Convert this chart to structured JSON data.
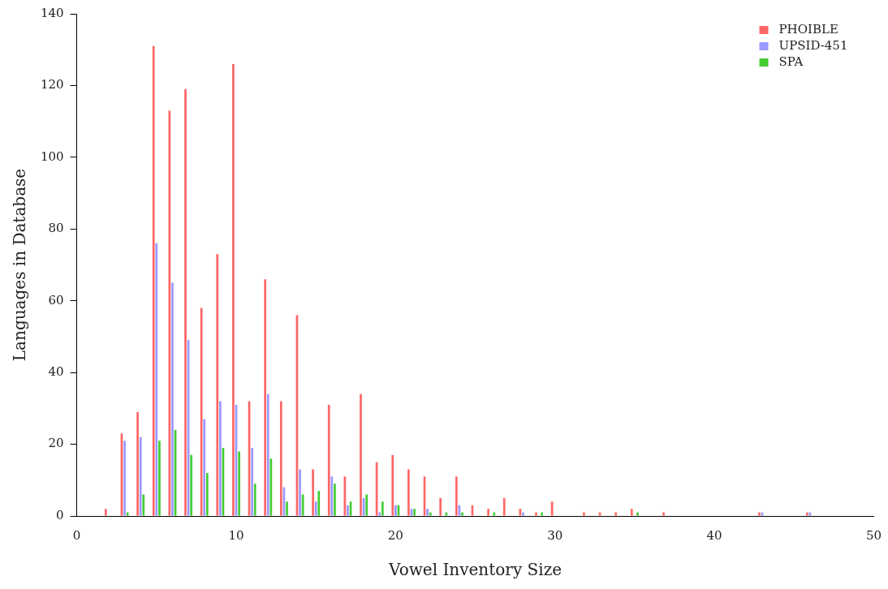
{
  "chart_data": {
    "type": "bar",
    "xlabel": "Vowel Inventory Size",
    "ylabel": "Languages in Database",
    "x": [
      2,
      3,
      4,
      5,
      6,
      7,
      8,
      9,
      10,
      11,
      12,
      13,
      14,
      15,
      16,
      17,
      18,
      19,
      20,
      21,
      22,
      23,
      24,
      25,
      26,
      27,
      28,
      29,
      30,
      31,
      32,
      33,
      34,
      35,
      36,
      37,
      43,
      46
    ],
    "series": [
      {
        "name": "PHOIBLE",
        "color": "#ff6666",
        "values": [
          2,
          23,
          29,
          131,
          113,
          119,
          58,
          73,
          126,
          32,
          66,
          32,
          56,
          13,
          31,
          11,
          34,
          15,
          17,
          13,
          11,
          5,
          11,
          3,
          2,
          5,
          2,
          1,
          4,
          null,
          1,
          1,
          1,
          2,
          null,
          1,
          1,
          1
        ]
      },
      {
        "name": "UPSID-451",
        "color": "#9999ff",
        "values": [
          null,
          21,
          22,
          76,
          65,
          49,
          27,
          32,
          31,
          19,
          34,
          8,
          13,
          4,
          11,
          3,
          5,
          1,
          3,
          2,
          2,
          null,
          3,
          null,
          null,
          null,
          1,
          null,
          null,
          null,
          null,
          null,
          null,
          null,
          null,
          null,
          1,
          1
        ]
      },
      {
        "name": "SPA",
        "color": "#44cc33",
        "values": [
          null,
          1,
          6,
          21,
          24,
          17,
          12,
          19,
          18,
          9,
          16,
          4,
          6,
          7,
          9,
          4,
          6,
          4,
          3,
          2,
          1,
          1,
          1,
          null,
          1,
          null,
          null,
          1,
          null,
          null,
          null,
          null,
          null,
          1,
          null,
          null,
          null,
          null
        ]
      }
    ],
    "xlim": [
      0,
      50
    ],
    "xticks": [
      0,
      10,
      20,
      30,
      40,
      50
    ],
    "ylim": [
      0,
      140
    ],
    "yticks": [
      0,
      20,
      40,
      60,
      80,
      100,
      120,
      140
    ],
    "grid": false,
    "legend": "top right"
  }
}
